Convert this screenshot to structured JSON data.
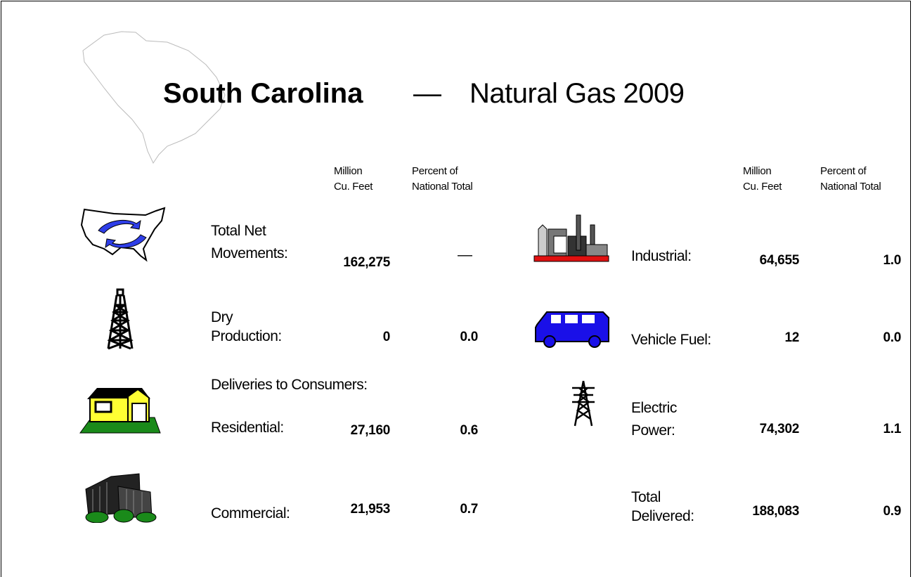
{
  "header": {
    "state": "South Carolina",
    "dash": "—",
    "subtitle": "Natural Gas 2009"
  },
  "column_headers": {
    "volume": [
      "Million",
      "Cu. Feet"
    ],
    "percent": [
      "Percent of",
      "National Total"
    ]
  },
  "left": {
    "rows": [
      {
        "label": [
          "Total Net",
          "Movements:"
        ],
        "volume": "162,275",
        "percent": "—"
      },
      {
        "label": [
          "Dry",
          "Production:"
        ],
        "volume": "0",
        "percent": "0.0"
      }
    ],
    "section": "Deliveries to Consumers:",
    "consumer_rows": [
      {
        "label": [
          "Residential:"
        ],
        "volume": "27,160",
        "percent": "0.6"
      },
      {
        "label": [
          "Commercial:"
        ],
        "volume": "21,953",
        "percent": "0.7"
      }
    ]
  },
  "right": {
    "rows": [
      {
        "label": [
          "Industrial:"
        ],
        "volume": "64,655",
        "percent": "1.0"
      },
      {
        "label": [
          "Vehicle Fuel:"
        ],
        "volume": "12",
        "percent": "0.0"
      },
      {
        "label": [
          "Electric",
          "Power:"
        ],
        "volume": "74,302",
        "percent": "1.1"
      },
      {
        "label": [
          "Total",
          "Delivered:"
        ],
        "volume": "188,083",
        "percent": "0.9"
      }
    ]
  }
}
